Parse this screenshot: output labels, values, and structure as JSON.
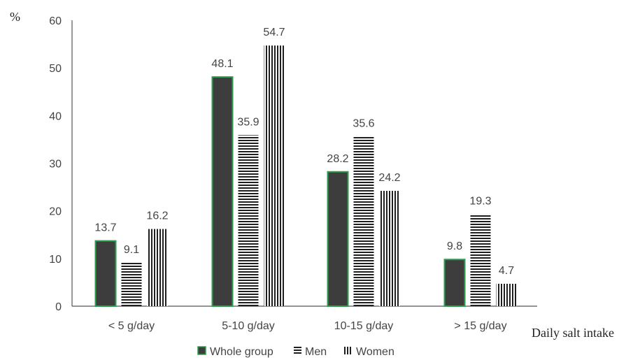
{
  "chart_data": {
    "type": "bar",
    "title": "",
    "ylabel": "%",
    "xlabel": "Daily salt intake",
    "ylim": [
      0,
      60
    ],
    "yticks": [
      0,
      10,
      20,
      30,
      40,
      50,
      60
    ],
    "grid": false,
    "legend_position": "bottom",
    "categories": [
      "< 5 g/day",
      "5-10 g/day",
      "10-15 g/day",
      "> 15 g/day"
    ],
    "series": [
      {
        "name": "Whole group",
        "values": [
          13.7,
          48.1,
          28.2,
          9.8
        ],
        "fill": "#3d3d3d",
        "stroke": "#2e9e4f",
        "pattern": "solid"
      },
      {
        "name": "Men",
        "values": [
          9.1,
          35.9,
          35.6,
          19.3
        ],
        "fill": "#1f1f1f",
        "pattern": "horizontal-lines"
      },
      {
        "name": "Women",
        "values": [
          16.2,
          54.7,
          24.2,
          4.7
        ],
        "fill": "#1f1f1f",
        "pattern": "vertical-lines"
      }
    ]
  }
}
